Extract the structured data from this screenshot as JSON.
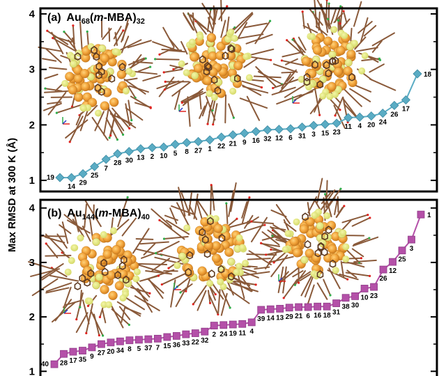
{
  "chart_data": {
    "type": "line",
    "ylabel": "Max RMSD at 300 K (Å)",
    "panels": [
      {
        "label": "(a)",
        "formula": {
          "base": "Au",
          "n": "68",
          "ligand_pre": "(",
          "ligand_italic": "m",
          "ligand_post": "-MBA)",
          "m": "32"
        },
        "ylim": [
          0.8,
          4.1
        ],
        "yticks": [
          1,
          2,
          3,
          4
        ],
        "color": "#5aacc4",
        "marker": "diamond",
        "points": [
          {
            "label": "19",
            "y": 1.05
          },
          {
            "label": "14",
            "y": 1.05
          },
          {
            "label": "29",
            "y": 1.12
          },
          {
            "label": "25",
            "y": 1.25
          },
          {
            "label": "7",
            "y": 1.38
          },
          {
            "label": "28",
            "y": 1.48
          },
          {
            "label": "30",
            "y": 1.52
          },
          {
            "label": "13",
            "y": 1.57
          },
          {
            "label": "2",
            "y": 1.59
          },
          {
            "label": "10",
            "y": 1.6
          },
          {
            "label": "5",
            "y": 1.65
          },
          {
            "label": "8",
            "y": 1.68
          },
          {
            "label": "27",
            "y": 1.7
          },
          {
            "label": "1",
            "y": 1.73
          },
          {
            "label": "22",
            "y": 1.78
          },
          {
            "label": "21",
            "y": 1.82
          },
          {
            "label": "9",
            "y": 1.85
          },
          {
            "label": "16",
            "y": 1.88
          },
          {
            "label": "32",
            "y": 1.91
          },
          {
            "label": "12",
            "y": 1.92
          },
          {
            "label": "6",
            "y": 1.93
          },
          {
            "label": "31",
            "y": 1.96
          },
          {
            "label": "3",
            "y": 1.99
          },
          {
            "label": "15",
            "y": 2.01
          },
          {
            "label": "23",
            "y": 2.03
          },
          {
            "label": "11",
            "y": 2.13
          },
          {
            "label": "4",
            "y": 2.14
          },
          {
            "label": "20",
            "y": 2.16
          },
          {
            "label": "24",
            "y": 2.21
          },
          {
            "label": "26",
            "y": 2.35
          },
          {
            "label": "17",
            "y": 2.45
          },
          {
            "label": "18",
            "y": 2.92
          }
        ]
      },
      {
        "label": "(b)",
        "formula": {
          "base": "Au",
          "n": "144",
          "ligand_pre": "(",
          "ligand_italic": "m",
          "ligand_post": "-MBA)",
          "m": "40"
        },
        "ylim": [
          0.85,
          4.15
        ],
        "yticks": [
          1,
          2,
          3,
          4
        ],
        "color": "#b450a8",
        "marker": "square",
        "points": [
          {
            "label": "40",
            "y": 1.13
          },
          {
            "label": "28",
            "y": 1.32
          },
          {
            "label": "17",
            "y": 1.36
          },
          {
            "label": "35",
            "y": 1.38
          },
          {
            "label": "9",
            "y": 1.44
          },
          {
            "label": "27",
            "y": 1.5
          },
          {
            "label": "20",
            "y": 1.53
          },
          {
            "label": "34",
            "y": 1.55
          },
          {
            "label": "8",
            "y": 1.57
          },
          {
            "label": "5",
            "y": 1.58
          },
          {
            "label": "37",
            "y": 1.59
          },
          {
            "label": "7",
            "y": 1.6
          },
          {
            "label": "15",
            "y": 1.63
          },
          {
            "label": "36",
            "y": 1.65
          },
          {
            "label": "33",
            "y": 1.68
          },
          {
            "label": "22",
            "y": 1.7
          },
          {
            "label": "32",
            "y": 1.73
          },
          {
            "label": "2",
            "y": 1.84
          },
          {
            "label": "24",
            "y": 1.85
          },
          {
            "label": "19",
            "y": 1.86
          },
          {
            "label": "11",
            "y": 1.87
          },
          {
            "label": "4",
            "y": 1.9
          },
          {
            "label": "39",
            "y": 2.13
          },
          {
            "label": "14",
            "y": 2.14
          },
          {
            "label": "13",
            "y": 2.15
          },
          {
            "label": "29",
            "y": 2.17
          },
          {
            "label": "21",
            "y": 2.18
          },
          {
            "label": "6",
            "y": 2.18
          },
          {
            "label": "16",
            "y": 2.19
          },
          {
            "label": "18",
            "y": 2.19
          },
          {
            "label": "31",
            "y": 2.25
          },
          {
            "label": "38",
            "y": 2.35
          },
          {
            "label": "30",
            "y": 2.38
          },
          {
            "label": "10",
            "y": 2.52
          },
          {
            "label": "23",
            "y": 2.55
          },
          {
            "label": "26",
            "y": 2.87
          },
          {
            "label": "12",
            "y": 3.01
          },
          {
            "label": "25",
            "y": 3.22
          },
          {
            "label": "3",
            "y": 3.42
          },
          {
            "label": "1",
            "y": 3.88
          }
        ]
      }
    ]
  }
}
